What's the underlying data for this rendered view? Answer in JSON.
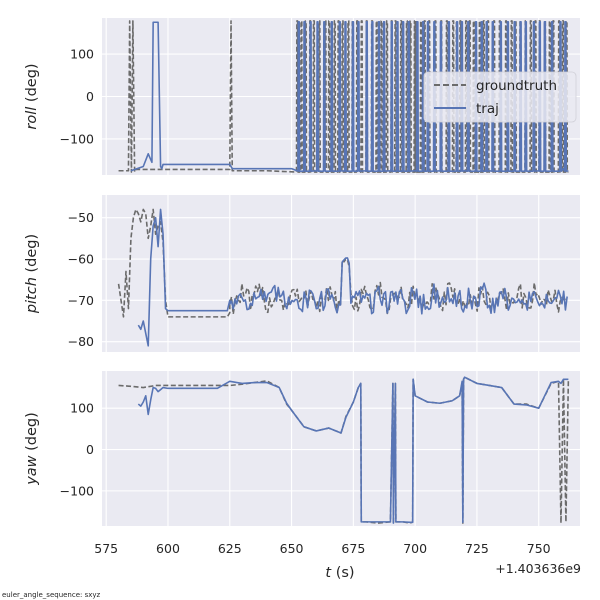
{
  "chart_data": [
    {
      "type": "line",
      "ylabel_var": "roll",
      "ylabel_unit": " (deg)",
      "ylim": [
        -185,
        185
      ],
      "yticks": [
        -100,
        0,
        100
      ],
      "xlim": [
        573.3,
        766.7
      ],
      "grid": true,
      "legend_placement": "right",
      "series": [
        {
          "name": "groundtruth",
          "style": "dashed",
          "color": "#6b6b6b",
          "x": [
            580,
            584,
            584.5,
            585.2,
            585.8,
            586.5,
            587,
            600,
            620,
            625,
            625.5,
            626,
            640,
            655,
            675,
            700,
            715,
            720,
            740,
            750,
            760,
            762
          ],
          "y": [
            -175,
            -175,
            178,
            -178,
            178,
            -178,
            -172,
            -172,
            -172,
            -172,
            178,
            -175,
            -175,
            -178,
            -178,
            -178,
            -178,
            -178,
            -178,
            -178,
            -178,
            -178
          ]
        },
        {
          "name": "traj",
          "style": "solid",
          "color": "#5875b5",
          "x": [
            585,
            590,
            592,
            593.5,
            594,
            595,
            596,
            597,
            597.5,
            598,
            600,
            610,
            625,
            626,
            640,
            650,
            660,
            670,
            680,
            690,
            700,
            710,
            720,
            730,
            740,
            750,
            760,
            762
          ],
          "y": [
            -175,
            -165,
            -135,
            -155,
            175,
            175,
            175,
            -165,
            -170,
            -160,
            -160,
            -160,
            -160,
            -170,
            -170,
            -170,
            -175,
            -175,
            -175,
            -175,
            -175,
            -175,
            -175,
            -175,
            -175,
            -175,
            -170,
            -175
          ]
        }
      ],
      "flip_regions": [
        [
          652,
          700
        ],
        [
          700,
          718
        ],
        [
          718,
          762
        ]
      ]
    },
    {
      "type": "line",
      "ylabel_var": "pitch",
      "ylabel_unit": " (deg)",
      "ylim": [
        -82.5,
        -44.5
      ],
      "yticks": [
        -80,
        -70,
        -60,
        -50
      ],
      "xlim": [
        573.3,
        766.7
      ],
      "grid": true,
      "series": [
        {
          "name": "groundtruth",
          "style": "dashed",
          "color": "#6b6b6b",
          "x": [
            580,
            581,
            582,
            583,
            584,
            585,
            586,
            587,
            588,
            589,
            590,
            591,
            592,
            593,
            594,
            595,
            596,
            597,
            598,
            599,
            600,
            605,
            610,
            615,
            620,
            624,
            625
          ],
          "y": [
            -66,
            -70,
            -74,
            -63,
            -72,
            -55,
            -50,
            -48,
            -49,
            -51,
            -48,
            -49,
            -55,
            -52,
            -48,
            -54,
            -52,
            -51,
            -56,
            -70,
            -74,
            -74,
            -74,
            -74,
            -74,
            -74,
            -73
          ],
          "noisy_segment": {
            "x_start": 625,
            "x_end": 762,
            "mean": -69.5,
            "amplitude": 2.8,
            "features": [
              [
                672,
                -61
              ],
              [
                705,
                -71
              ],
              [
                720,
                -71
              ],
              [
                740,
                -70
              ],
              [
                760,
                -70
              ]
            ]
          }
        },
        {
          "name": "traj",
          "style": "solid",
          "color": "#5875b5",
          "x": [
            588,
            589,
            590,
            591,
            592,
            593,
            594,
            595,
            596,
            597,
            598,
            599,
            600,
            605,
            610,
            615,
            620,
            624,
            625
          ],
          "y": [
            -76,
            -77,
            -75,
            -78,
            -81,
            -60,
            -52,
            -50,
            -57,
            -48,
            -54,
            -72,
            -72.5,
            -72.5,
            -72.5,
            -72.5,
            -72.5,
            -72.5,
            -70
          ],
          "noisy_segment": {
            "x_start": 625,
            "x_end": 762,
            "mean": -69.5,
            "amplitude": 2.8,
            "features": [
              [
                672,
                -60.5
              ],
              [
                705,
                -72
              ],
              [
                720,
                -72
              ],
              [
                740,
                -70
              ],
              [
                755,
                -71
              ]
            ]
          }
        }
      ]
    },
    {
      "type": "line",
      "ylabel_var": "yaw",
      "ylabel_unit": " (deg)",
      "ylim": [
        -185,
        190
      ],
      "yticks": [
        -100,
        0,
        100
      ],
      "xlim": [
        573.3,
        766.7
      ],
      "grid": true,
      "series": [
        {
          "name": "groundtruth",
          "style": "dashed",
          "color": "#6b6b6b",
          "x": [
            580,
            585,
            590,
            595,
            600,
            610,
            620,
            625,
            630,
            635,
            640,
            645,
            648,
            650,
            655,
            660,
            665,
            670,
            672,
            675,
            677,
            678,
            678.2,
            680,
            685,
            690,
            691,
            691.2,
            692,
            692.2,
            695,
            698,
            699,
            699.2,
            700,
            705,
            710,
            715,
            718,
            719,
            719.3,
            719.6,
            720,
            725,
            730,
            735,
            740,
            745,
            750,
            755,
            758,
            759,
            760,
            761,
            762
          ],
          "y": [
            155,
            153,
            150,
            155,
            155,
            155,
            155,
            155,
            158,
            162,
            166,
            150,
            110,
            95,
            55,
            45,
            52,
            40,
            80,
            115,
            150,
            160,
            -175,
            -175,
            -178,
            -175,
            160,
            -180,
            160,
            -175,
            -175,
            -178,
            -175,
            170,
            130,
            115,
            112,
            118,
            130,
            160,
            -178,
            170,
            175,
            160,
            155,
            150,
            110,
            110,
            100,
            160,
            165,
            -178,
            170,
            -175,
            170
          ]
        },
        {
          "name": "traj",
          "style": "solid",
          "color": "#5875b5",
          "x": [
            588,
            589,
            590,
            591,
            592,
            593,
            594,
            595,
            596,
            597,
            598,
            600,
            610,
            620,
            625,
            630,
            635,
            640,
            645,
            648,
            650,
            655,
            660,
            665,
            670,
            672,
            675,
            677,
            678,
            678.2,
            680,
            685,
            690,
            691,
            691.2,
            692,
            692.2,
            695,
            698,
            699,
            699.2,
            700,
            705,
            710,
            715,
            718,
            719,
            719.3,
            719.6,
            720,
            725,
            730,
            735,
            740,
            745,
            750,
            755,
            758,
            759,
            760,
            761,
            762
          ],
          "y": [
            110,
            105,
            115,
            130,
            85,
            120,
            150,
            148,
            140,
            145,
            150,
            148,
            148,
            148,
            165,
            160,
            162,
            162,
            150,
            112,
            95,
            55,
            45,
            52,
            40,
            78,
            115,
            150,
            160,
            -175,
            -175,
            -175,
            -175,
            160,
            -178,
            160,
            -175,
            -175,
            -176,
            -176,
            170,
            130,
            115,
            112,
            118,
            130,
            165,
            -176,
            170,
            175,
            160,
            155,
            150,
            110,
            108,
            100,
            162,
            165,
            160,
            170,
            170,
            170
          ]
        }
      ]
    }
  ],
  "shared": {
    "xticks": [
      "575",
      "600",
      "625",
      "650",
      "675",
      "700",
      "725",
      "750"
    ],
    "xtick_values": [
      575,
      600,
      625,
      650,
      675,
      700,
      725,
      750
    ],
    "xlabel_var": "t",
    "xlabel_unit": " (s)",
    "offset_text": "+1.403636e9",
    "footnote": "euler_angle_sequence: sxyz"
  },
  "colors": {
    "background": "#eaeaf2",
    "grid": "#ffffff",
    "groundtruth": "#6b6b6b",
    "traj": "#5875b5"
  }
}
